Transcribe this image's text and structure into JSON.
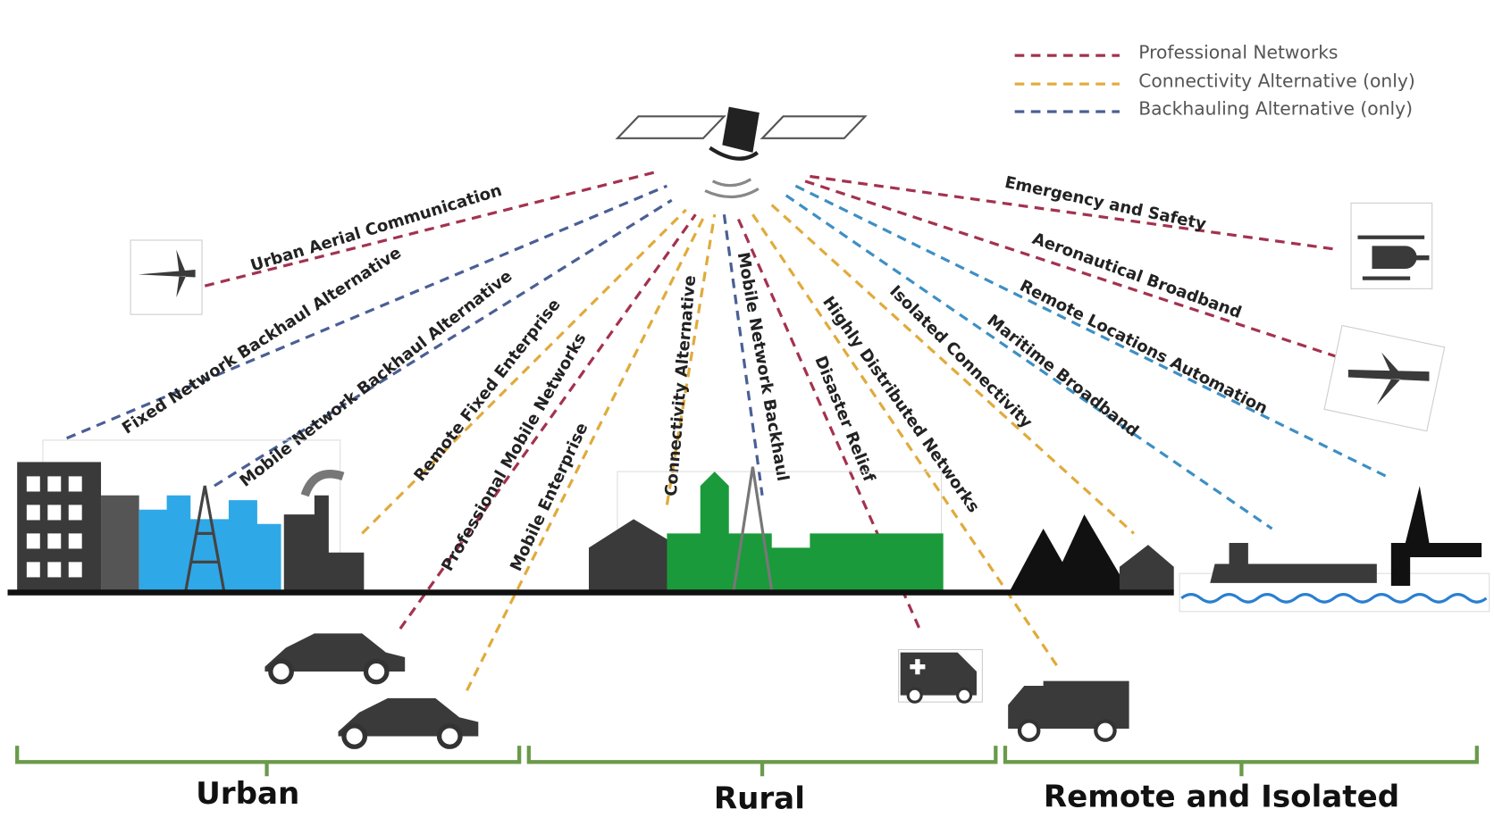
{
  "legend": [
    "Professional Networks",
    "Connectivity Alternative (only)",
    "Backhauling Alternative (only)"
  ],
  "links": [
    "Urban Aerial Communication",
    "Fixed Network Backhaul Alternative",
    "Mobile Network Backhaul Alternative",
    "Remote Fixed Enterprise",
    "Professional Mobile Networks",
    "Mobile Enterprise",
    "Connectivity Alternative",
    "Mobile Network Backhaul",
    "Disaster Relief",
    "Highly Distributed Networks",
    "Isolated Connectivity",
    "Maritime Broadband",
    "Remote Locations Automation",
    "Aeronautical Broadband",
    "Emergency and Safety"
  ],
  "regions": [
    "Urban",
    "Rural",
    "Remote and Isolated"
  ]
}
